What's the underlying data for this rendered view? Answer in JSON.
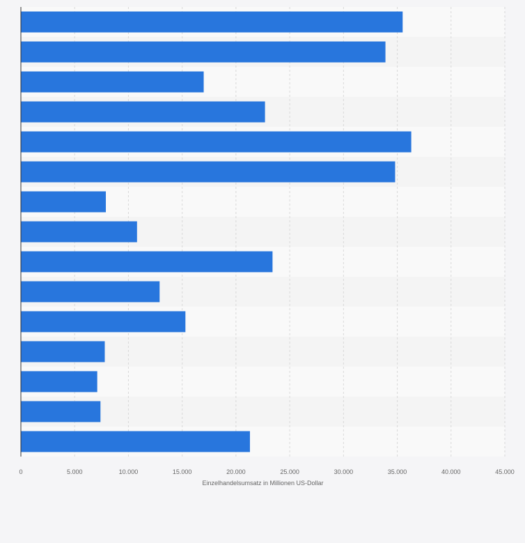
{
  "chart_data": {
    "type": "bar",
    "orientation": "horizontal",
    "categories": [
      "",
      "",
      "",
      "",
      "",
      "",
      "",
      "",
      "",
      "",
      "",
      "",
      "",
      "",
      ""
    ],
    "values": [
      35500,
      33900,
      17000,
      22700,
      36300,
      34800,
      7900,
      10800,
      23400,
      12900,
      15300,
      7800,
      7100,
      7400,
      21300
    ],
    "xlabel": "Einzelhandelsumsatz in Millionen US-Dollar",
    "ylabel": "",
    "xlim": [
      0,
      45000
    ],
    "xticks": [
      0,
      5000,
      10000,
      15000,
      20000,
      25000,
      30000,
      35000,
      40000,
      45000
    ],
    "xtick_labels": [
      "0",
      "5.000",
      "10.000",
      "15.000",
      "20.000",
      "25.000",
      "30.000",
      "35.000",
      "40.000",
      "45.000"
    ],
    "grid": true,
    "bar_color": "#2876dd",
    "band_colors": [
      "#f9f9f9",
      "#f4f4f4"
    ],
    "background_color": "#f5f5f7",
    "gridline_color": "#d8d8d8",
    "axis_color": "#333333"
  }
}
